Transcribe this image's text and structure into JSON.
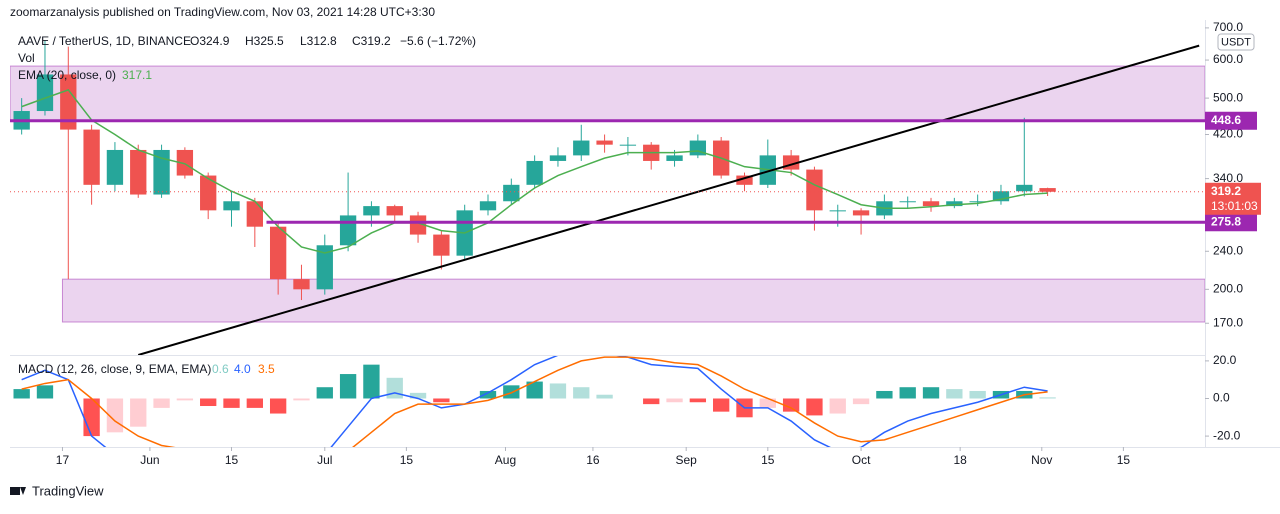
{
  "header": {
    "publisher": "zoomarzanalysis published on TradingView.com, Nov 03, 2021 14:28 UTC+3:30",
    "symbol": "AAVE / TetherUS, 1D, BINANCE",
    "ohlc": [
      "O324.9",
      "H325.5",
      "L312.8",
      "C319.2",
      "−5.6 (−1.72%)"
    ],
    "vol_label": "Vol",
    "ema_label": "EMA (20, close, 0)",
    "ema_value": "317.1",
    "macd_label": "MACD (12, 26, close, 9, EMA, EMA)",
    "macd_values": [
      "0.6",
      "4.0",
      "3.5"
    ],
    "currency": "USDT",
    "countdown": "13:01:03",
    "footer": "TradingView"
  },
  "chart_data": {
    "type": "candlestick",
    "log_scale": true,
    "xlim": [
      "2021-05-08",
      "2021-11-29"
    ],
    "xticks": [
      {
        "value": "2021-05-17",
        "label": "17"
      },
      {
        "value": "2021-06-01",
        "label": "Jun"
      },
      {
        "value": "2021-06-15",
        "label": "15"
      },
      {
        "value": "2021-07-01",
        "label": "Jul"
      },
      {
        "value": "2021-07-15",
        "label": "15"
      },
      {
        "value": "2021-08-01",
        "label": "Aug"
      },
      {
        "value": "2021-08-16",
        "label": "16"
      },
      {
        "value": "2021-09-01",
        "label": "Sep"
      },
      {
        "value": "2021-09-15",
        "label": "15"
      },
      {
        "value": "2021-10-01",
        "label": "Oct"
      },
      {
        "value": "2021-10-18",
        "label": "18"
      },
      {
        "value": "2021-11-01",
        "label": "Nov"
      },
      {
        "value": "2021-11-15",
        "label": "15"
      }
    ],
    "ylim": [
      146,
      727
    ],
    "yticks": [
      {
        "value": 700,
        "label": "700.0"
      },
      {
        "value": 600,
        "label": "600.0"
      },
      {
        "value": 500,
        "label": "500.0"
      },
      {
        "value": 420,
        "label": "420.0"
      },
      {
        "value": 340,
        "label": "340.0"
      },
      {
        "value": 240,
        "label": "240.0"
      },
      {
        "value": 200,
        "label": "200.0"
      },
      {
        "value": 170,
        "label": "170.0"
      }
    ],
    "up_color": "#26a69a",
    "down_color": "#ef5350",
    "ema_color": "#4caf50",
    "candles": {
      "x": [
        "2021-05-10",
        "2021-05-14",
        "2021-05-18",
        "2021-05-22",
        "2021-05-26",
        "2021-05-30",
        "2021-06-03",
        "2021-06-07",
        "2021-06-11",
        "2021-06-15",
        "2021-06-19",
        "2021-06-23",
        "2021-06-27",
        "2021-07-01",
        "2021-07-05",
        "2021-07-09",
        "2021-07-13",
        "2021-07-17",
        "2021-07-21",
        "2021-07-25",
        "2021-07-29",
        "2021-08-02",
        "2021-08-06",
        "2021-08-10",
        "2021-08-14",
        "2021-08-18",
        "2021-08-22",
        "2021-08-26",
        "2021-08-30",
        "2021-09-03",
        "2021-09-07",
        "2021-09-11",
        "2021-09-15",
        "2021-09-19",
        "2021-09-23",
        "2021-09-27",
        "2021-10-01",
        "2021-10-05",
        "2021-10-09",
        "2021-10-13",
        "2021-10-17",
        "2021-10-21",
        "2021-10-25",
        "2021-10-29",
        "2021-11-02"
      ],
      "open": [
        430,
        470,
        560,
        430,
        330,
        390,
        315,
        390,
        345,
        292,
        305,
        270,
        210,
        200,
        247,
        285,
        298,
        285,
        260,
        235,
        292,
        305,
        330,
        370,
        380,
        408,
        400,
        400,
        370,
        380,
        408,
        345,
        330,
        380,
        355,
        292,
        292,
        285,
        305,
        305,
        298,
        305,
        305,
        320,
        324.9
      ],
      "high": [
        500,
        660,
        640,
        440,
        405,
        400,
        400,
        395,
        350,
        320,
        310,
        275,
        225,
        260,
        350,
        305,
        300,
        290,
        265,
        300,
        315,
        340,
        380,
        395,
        440,
        420,
        415,
        405,
        390,
        420,
        415,
        350,
        410,
        390,
        360,
        300,
        295,
        315,
        312,
        310,
        310,
        315,
        330,
        455,
        325.5
      ],
      "low": [
        420,
        460,
        210,
        300,
        320,
        310,
        310,
        340,
        280,
        270,
        245,
        195,
        190,
        195,
        240,
        270,
        275,
        250,
        220,
        230,
        285,
        300,
        325,
        360,
        370,
        385,
        380,
        355,
        360,
        375,
        340,
        320,
        325,
        345,
        265,
        270,
        260,
        280,
        295,
        290,
        295,
        298,
        300,
        312,
        312.8
      ],
      "close": [
        470,
        560,
        430,
        330,
        390,
        315,
        390,
        345,
        292,
        305,
        270,
        210,
        200,
        247,
        285,
        298,
        285,
        260,
        235,
        292,
        305,
        330,
        370,
        380,
        408,
        400,
        400,
        370,
        380,
        408,
        345,
        330,
        380,
        355,
        292,
        292,
        285,
        305,
        305,
        298,
        305,
        305,
        320,
        330,
        319.2
      ]
    },
    "ema": [
      480,
      500,
      520,
      450,
      420,
      390,
      375,
      365,
      340,
      320,
      305,
      270,
      245,
      238,
      245,
      262,
      275,
      275,
      265,
      262,
      275,
      300,
      325,
      345,
      360,
      375,
      385,
      385,
      385,
      388,
      375,
      360,
      355,
      350,
      330,
      315,
      300,
      295,
      295,
      297,
      300,
      302,
      308,
      315,
      317.1
    ],
    "levels": [
      {
        "value": 448.6,
        "x_start": "2021-05-08",
        "color": "#9c27b0"
      },
      {
        "value": 275.8,
        "x_start": "2021-06-21",
        "color": "#9c27b0"
      }
    ],
    "zones": [
      {
        "low": 448.6,
        "high": 583,
        "x_start": "2021-05-08"
      },
      {
        "low": 171,
        "high": 210,
        "x_start": "2021-05-17"
      }
    ],
    "trendline": {
      "x": [
        "2021-05-30",
        "2021-11-28"
      ],
      "y": [
        146,
        643
      ]
    },
    "macd": {
      "ylim": [
        -25.8,
        22.6
      ],
      "yticks": [
        {
          "value": 20,
          "label": "20.0"
        },
        {
          "value": 0,
          "label": "0.0"
        },
        {
          "value": -20,
          "label": "-20.0"
        }
      ],
      "histogram": [
        5,
        7,
        0,
        -20,
        -18,
        -15,
        -5,
        -1,
        -4,
        -5,
        -5,
        -8,
        -1,
        6,
        13,
        18,
        11,
        3,
        -2,
        0,
        4,
        7,
        9,
        8,
        6,
        2,
        0,
        -3,
        -2,
        -2,
        -7,
        -10,
        -5,
        -7,
        -9,
        -8,
        -3,
        4,
        6,
        6,
        5,
        4,
        4,
        4,
        0.6
      ],
      "macd_line": [
        10,
        15,
        10,
        -20,
        -30,
        -35,
        -30,
        -28,
        -32,
        -35,
        -38,
        -45,
        -40,
        -30,
        -15,
        0,
        3,
        0,
        -5,
        -3,
        3,
        10,
        18,
        23,
        26,
        24,
        22,
        18,
        17,
        16,
        5,
        -5,
        -5,
        -12,
        -22,
        -28,
        -26,
        -18,
        -12,
        -8,
        -5,
        -2,
        2,
        6,
        4.0
      ],
      "signal_line": [
        5,
        8,
        10,
        0,
        -12,
        -20,
        -25,
        -27,
        -28,
        -30,
        -33,
        -37,
        -39,
        -36,
        -28,
        -18,
        -8,
        -3,
        -3,
        -3,
        -1,
        3,
        9,
        15,
        20,
        22,
        22,
        21,
        19,
        18,
        12,
        5,
        0,
        -5,
        -13,
        -20,
        -23,
        -22,
        -18,
        -14,
        -10,
        -6,
        -2,
        2,
        3.5
      ],
      "macd_color": "#2962ff",
      "signal_color": "#ff6d00"
    }
  }
}
